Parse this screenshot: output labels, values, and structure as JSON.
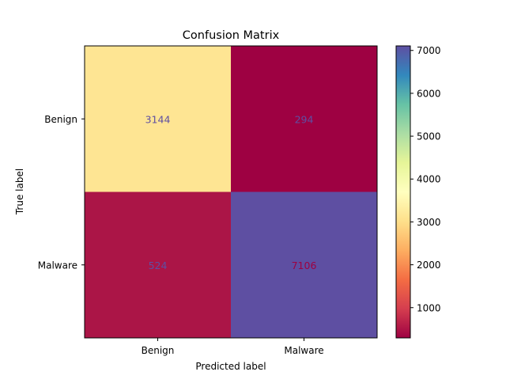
{
  "chart_data": {
    "type": "heatmap",
    "title": "Confusion Matrix",
    "xlabel": "Predicted label",
    "ylabel": "True label",
    "x_categories": [
      "Benign",
      "Malware"
    ],
    "y_categories": [
      "Benign",
      "Malware"
    ],
    "values": [
      [
        3144,
        294
      ],
      [
        524,
        7106
      ]
    ],
    "colormap": "Spectral",
    "color_range": [
      294,
      7106
    ],
    "colorbar_ticks": [
      "1000",
      "2000",
      "3000",
      "4000",
      "5000",
      "6000",
      "7000"
    ],
    "cell_colors": [
      [
        "#fee593",
        "#9e0142"
      ],
      [
        "#ab1547",
        "#5e4fa2"
      ]
    ],
    "cell_label_colors": [
      [
        "#5e4fa2",
        "#5e4fa2"
      ],
      [
        "#5e4fa2",
        "#9e0142"
      ]
    ]
  }
}
